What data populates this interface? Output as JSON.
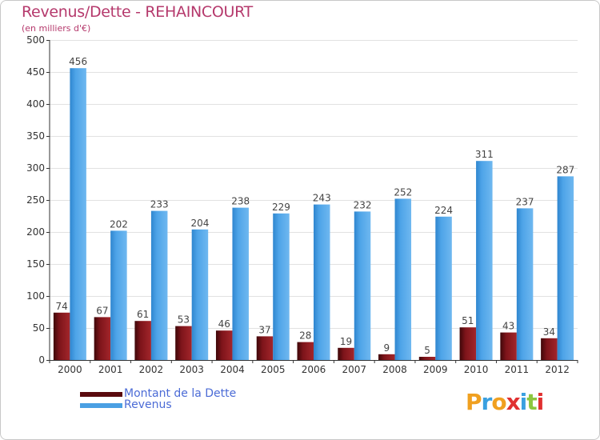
{
  "chart_data": {
    "type": "bar",
    "title": "Revenus/Dette - REHAINCOURT",
    "subtitle": "(en milliers d'€)",
    "categories": [
      "2000",
      "2001",
      "2002",
      "2003",
      "2004",
      "2005",
      "2006",
      "2007",
      "2008",
      "2009",
      "2010",
      "2011",
      "2012"
    ],
    "series": [
      {
        "name": "Montant de la Dette",
        "color": "#7a1318",
        "values": [
          74,
          67,
          61,
          53,
          46,
          37,
          28,
          19,
          9,
          5,
          51,
          43,
          34
        ]
      },
      {
        "name": "Revenus",
        "color": "#4a9fe3",
        "values": [
          456,
          202,
          233,
          204,
          238,
          229,
          243,
          232,
          252,
          224,
          311,
          237,
          287
        ]
      }
    ],
    "ylim": [
      0,
      500
    ],
    "yticks": [
      0,
      50,
      100,
      150,
      200,
      250,
      300,
      350,
      400,
      450,
      500
    ],
    "grid": true,
    "legend_position": "bottom-left"
  },
  "logo": {
    "letters": [
      "P",
      "r",
      "o",
      "x",
      "i",
      "t",
      "i"
    ],
    "colors": [
      "#f0a020",
      "#3aa0e0",
      "#f0a020",
      "#e03030",
      "#3aa0e0",
      "#8cc63f",
      "#e03030"
    ]
  }
}
